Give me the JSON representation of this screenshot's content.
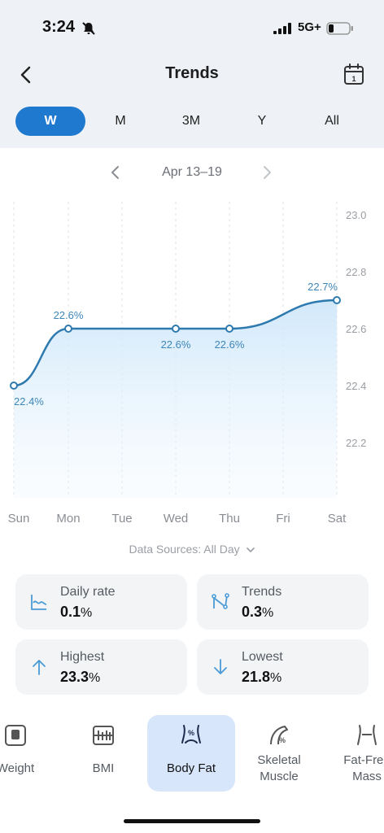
{
  "status": {
    "time": "3:24",
    "network": "5G+"
  },
  "header": {
    "title": "Trends"
  },
  "periods": [
    "W",
    "M",
    "3M",
    "Y",
    "All"
  ],
  "range": {
    "label": "Apr 13–19"
  },
  "chart_data": {
    "type": "line",
    "categories": [
      "Sun",
      "Mon",
      "Tue",
      "Wed",
      "Thu",
      "Fri",
      "Sat"
    ],
    "series": [
      {
        "values": [
          22.4,
          22.6,
          null,
          22.6,
          22.6,
          null,
          22.7
        ]
      }
    ],
    "point_labels": [
      "22.4%",
      "22.6%",
      "",
      "22.6%",
      "22.6%",
      "",
      "22.7%"
    ],
    "y_ticks": [
      "23.0",
      "22.8",
      "22.6",
      "22.4",
      "22.2"
    ],
    "ylim": [
      22.0,
      23.0
    ],
    "y_axis_side": "right",
    "grid": "vertical dashed",
    "colors": {
      "line": "#2e7aaf",
      "fill": "#d6ecfb"
    }
  },
  "data_sources": "Data Sources: All Day",
  "cards": [
    {
      "label": "Daily rate",
      "value": "0.1",
      "unit": "%",
      "icon": "line-chart-icon"
    },
    {
      "label": "Trends",
      "value": "0.3",
      "unit": "%",
      "icon": "trend-nodes-icon"
    },
    {
      "label": "Highest",
      "value": "23.3",
      "unit": "%",
      "icon": "arrow-up-icon"
    },
    {
      "label": "Lowest",
      "value": "21.8",
      "unit": "%",
      "icon": "arrow-down-icon"
    }
  ],
  "metric_tabs": [
    {
      "line1": "Weight",
      "line2": ""
    },
    {
      "line1": "BMI",
      "line2": ""
    },
    {
      "line1": "Body Fat",
      "line2": ""
    },
    {
      "line1": "Skeletal",
      "line2": "Muscle"
    },
    {
      "line1": "Fat-Free",
      "line2": "Mass"
    }
  ],
  "accent": "#1f7acf"
}
